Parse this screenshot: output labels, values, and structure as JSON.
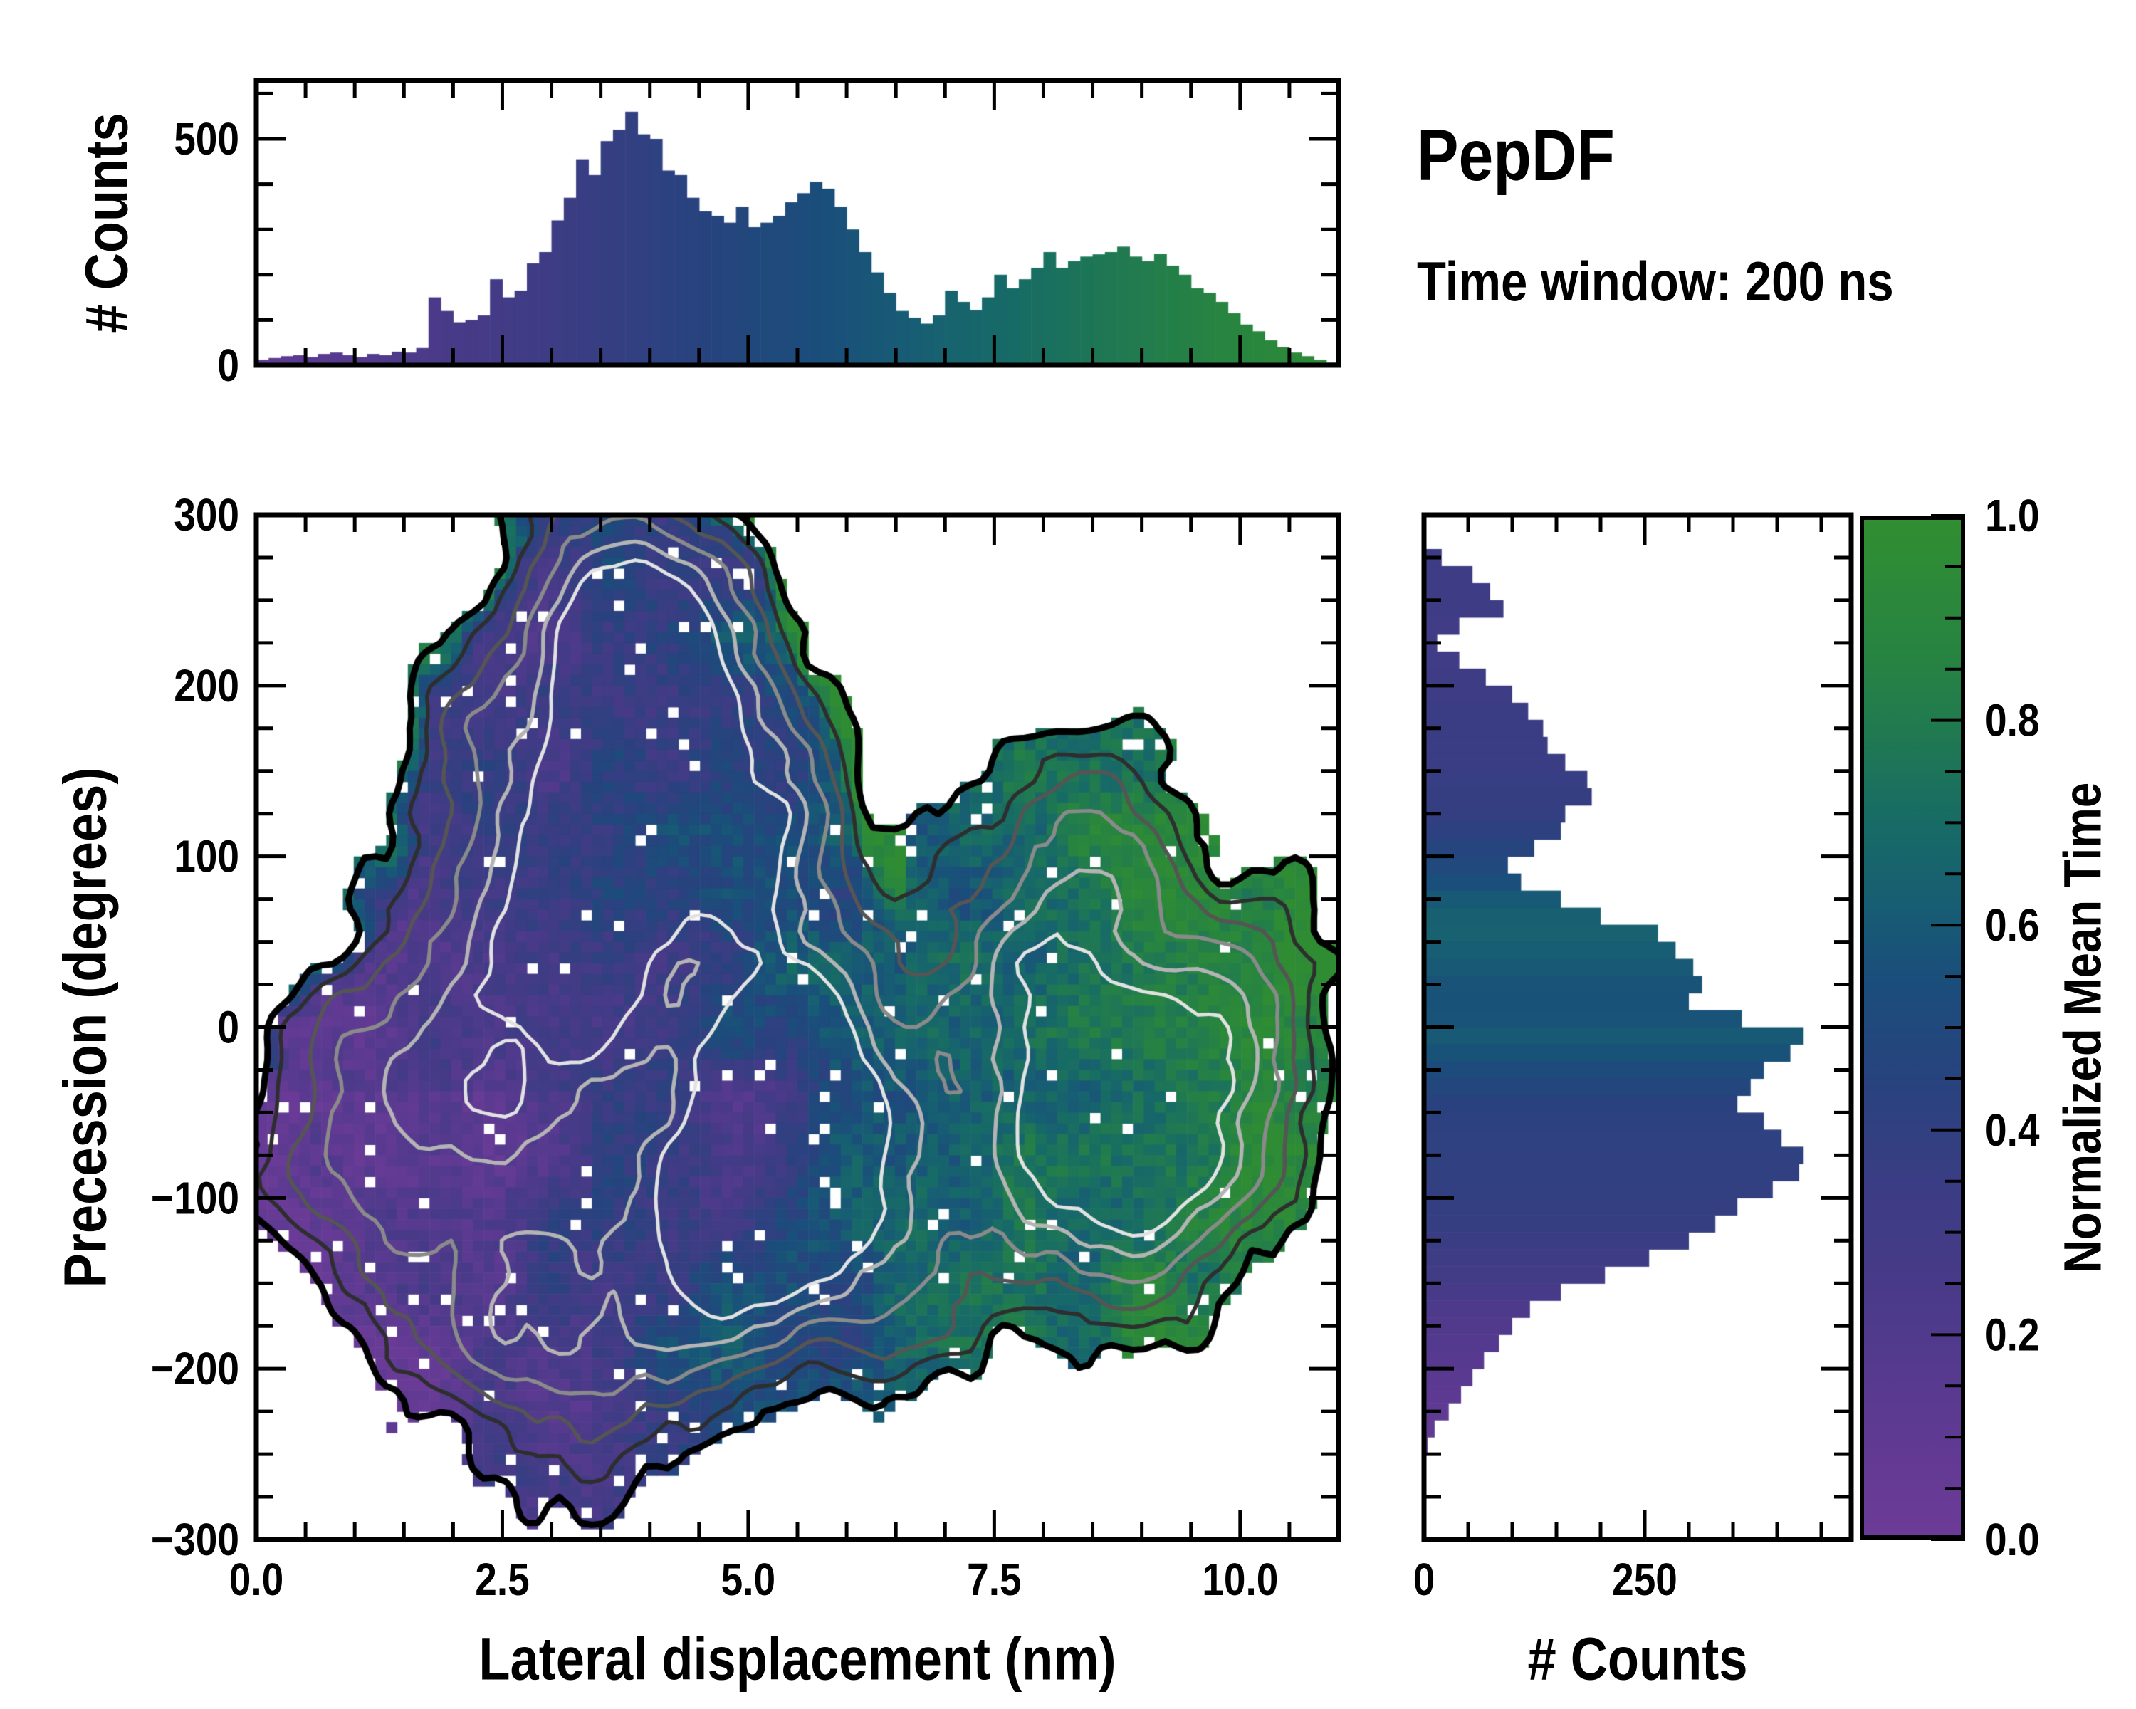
{
  "title": "PepDF",
  "subtitle": "Time window: 200 ns",
  "colors": {
    "background": "#ffffff",
    "axis": "#000000",
    "colormap": [
      [
        0.0,
        "#6c3b97"
      ],
      [
        0.12,
        "#5c3a91"
      ],
      [
        0.25,
        "#483a88"
      ],
      [
        0.35,
        "#3a3d83"
      ],
      [
        0.45,
        "#27437e"
      ],
      [
        0.55,
        "#1a4e7b"
      ],
      [
        0.62,
        "#175d73"
      ],
      [
        0.7,
        "#176b66"
      ],
      [
        0.78,
        "#1f7853"
      ],
      [
        0.86,
        "#268342"
      ],
      [
        1.0,
        "#318e31"
      ]
    ]
  },
  "colorbar": {
    "label": "Normalized Mean Time",
    "lim": [
      0,
      1
    ],
    "ticks": [
      {
        "v": 0.0,
        "label": "0.0"
      },
      {
        "v": 0.2,
        "label": "0.2"
      },
      {
        "v": 0.4,
        "label": "0.4"
      },
      {
        "v": 0.6,
        "label": "0.6"
      },
      {
        "v": 0.8,
        "label": "0.8"
      },
      {
        "v": 1.0,
        "label": "1.0"
      }
    ],
    "minor_step": 0.05
  },
  "chart_data": [
    {
      "id": "top_histogram",
      "type": "bar",
      "orientation": "vertical",
      "ylabel": "# Counts",
      "xlim": [
        0,
        11
      ],
      "ylim": [
        0,
        628
      ],
      "yticks": [
        {
          "v": 0,
          "label": "0"
        },
        {
          "v": 500,
          "label": "500"
        }
      ],
      "y_minor": 100,
      "x_major": 2.5,
      "x_minor": 0.5,
      "bar_x_start": 0.0625,
      "bar_dx": 0.125,
      "color_rule": {
        "intercept": 0.09,
        "slope": 0.0795
      },
      "values": [
        12,
        16,
        20,
        22,
        18,
        25,
        28,
        22,
        18,
        25,
        22,
        30,
        28,
        38,
        150,
        120,
        95,
        100,
        110,
        190,
        150,
        165,
        225,
        250,
        320,
        370,
        455,
        420,
        495,
        520,
        560,
        510,
        500,
        430,
        420,
        370,
        340,
        330,
        315,
        350,
        305,
        315,
        330,
        360,
        380,
        405,
        390,
        350,
        300,
        250,
        205,
        160,
        120,
        105,
        92,
        110,
        165,
        140,
        122,
        150,
        200,
        170,
        190,
        215,
        250,
        215,
        230,
        240,
        245,
        250,
        262,
        240,
        230,
        246,
        220,
        200,
        170,
        160,
        140,
        115,
        90,
        75,
        55,
        40,
        28,
        20,
        12,
        6
      ]
    },
    {
      "id": "precession_heatmap",
      "type": "heatmap",
      "xlabel": "Lateral displacement (nm)",
      "ylabel": "Precession (degrees)",
      "color_field": "Normalized Mean Time",
      "xlim": [
        0,
        11
      ],
      "ylim": [
        -300,
        300
      ],
      "xticks": [
        {
          "v": 0,
          "label": "0.0"
        },
        {
          "v": 2.5,
          "label": "2.5"
        },
        {
          "v": 5,
          "label": "5.0"
        },
        {
          "v": 7.5,
          "label": "7.5"
        },
        {
          "v": 10,
          "label": "10.0"
        }
      ],
      "yticks": [
        {
          "v": 300,
          "label": "300"
        },
        {
          "v": 200,
          "label": "200"
        },
        {
          "v": 100,
          "label": "100"
        },
        {
          "v": 0,
          "label": "0"
        },
        {
          "v": -100,
          "label": "−100"
        },
        {
          "v": -200,
          "label": "−200"
        },
        {
          "v": -300,
          "label": "−300"
        }
      ],
      "x_minor": 0.5,
      "y_minor": 25,
      "grid": {
        "nx": 100,
        "ny": 96
      },
      "density": {
        "gaussians": [
          [
            3.8,
            145,
            0.75,
            75,
            1.0
          ],
          [
            3.55,
            250,
            0.65,
            45,
            0.6
          ],
          [
            3.1,
            40,
            0.75,
            70,
            0.75
          ],
          [
            5.25,
            115,
            0.55,
            50,
            0.62
          ],
          [
            5.6,
            -25,
            0.7,
            65,
            0.9
          ],
          [
            5.05,
            -85,
            0.65,
            55,
            0.88
          ],
          [
            4.4,
            -150,
            0.9,
            65,
            0.5
          ],
          [
            2.25,
            -80,
            0.85,
            85,
            0.48
          ],
          [
            1.5,
            -25,
            0.6,
            55,
            0.34
          ],
          [
            3.0,
            -190,
            0.75,
            50,
            0.42
          ],
          [
            6.6,
            -120,
            0.75,
            60,
            0.5
          ],
          [
            7.9,
            25,
            0.75,
            70,
            0.62
          ],
          [
            8.7,
            -85,
            0.75,
            60,
            0.8
          ],
          [
            9.35,
            -30,
            0.65,
            60,
            0.55
          ],
          [
            8.55,
            105,
            0.6,
            50,
            0.38
          ],
          [
            10.15,
            -5,
            0.55,
            60,
            0.42
          ],
          [
            2.1,
            150,
            0.55,
            55,
            0.3
          ],
          [
            4.6,
            230,
            0.6,
            45,
            0.45
          ],
          [
            0.7,
            -70,
            0.6,
            70,
            0.3
          ]
        ],
        "noise": [
          {
            "amp": 0.09,
            "scale": [
              0.7,
              45
            ],
            "seed": 11
          },
          {
            "amp": 0.05,
            "scale": [
              0.28,
              18
            ],
            "seed": 23
          }
        ],
        "threshold": 0.165,
        "paint_threshold": 0.152
      },
      "time_field": {
        "base_intercept": 0.09,
        "base_slope": 0.0795,
        "noise": {
          "amp": 0.13,
          "scale": [
            0.6,
            38
          ],
          "seed": 31
        },
        "cell_jitter": 0.16,
        "rim": {
          "amp": 0.5,
          "d0": 0.3,
          "range": 0.14,
          "min_y": -25,
          "max_x": 6.6
        },
        "purple_patch": {
          "x": 5.0,
          "y": -75,
          "sx": 0.45,
          "sy": 38,
          "amp": -0.26
        },
        "lower_left": {
          "max_x": 3.4,
          "max_y": -40,
          "delta": -0.06
        }
      },
      "holes": {
        "random_p": 0.975,
        "edge_d": 0.19,
        "edge_p": 0.85
      },
      "contours": {
        "levels": [
          0.165,
          0.26,
          0.38,
          0.52,
          0.68,
          0.82
        ],
        "colors": [
          "#000000",
          "#2e2e2e",
          "#555555",
          "#8a8a8a",
          "#b4b4b4",
          "#e2e2e2"
        ],
        "widths": [
          9,
          5.5,
          5.5,
          5.5,
          5.5,
          5
        ]
      }
    },
    {
      "id": "right_histogram",
      "type": "bar",
      "orientation": "horizontal",
      "xlabel": "# Counts",
      "xlim": [
        0,
        484
      ],
      "ylim": [
        -300,
        300
      ],
      "xticks": [
        {
          "v": 0,
          "label": "0"
        },
        {
          "v": 250,
          "label": "250"
        }
      ],
      "x_minor": 50,
      "y_minor": 25,
      "y_major": 100,
      "bar_y_start": 295,
      "bar_dy": -10,
      "values": [
        0,
        0,
        20,
        55,
        75,
        90,
        40,
        15,
        40,
        70,
        100,
        118,
        135,
        140,
        160,
        185,
        190,
        160,
        155,
        125,
        95,
        110,
        155,
        200,
        265,
        285,
        305,
        315,
        300,
        360,
        430,
        415,
        385,
        370,
        355,
        385,
        405,
        430,
        425,
        395,
        355,
        330,
        300,
        255,
        205,
        155,
        120,
        100,
        85,
        68,
        55,
        42,
        28,
        12,
        4,
        0,
        0,
        0,
        0,
        0
      ],
      "t_values": [
        0.35,
        0.35,
        0.33,
        0.33,
        0.32,
        0.32,
        0.31,
        0.3,
        0.31,
        0.32,
        0.33,
        0.34,
        0.34,
        0.35,
        0.35,
        0.36,
        0.37,
        0.38,
        0.42,
        0.46,
        0.5,
        0.55,
        0.6,
        0.63,
        0.64,
        0.62,
        0.6,
        0.58,
        0.57,
        0.58,
        0.6,
        0.57,
        0.53,
        0.48,
        0.44,
        0.42,
        0.41,
        0.41,
        0.4,
        0.39,
        0.38,
        0.37,
        0.35,
        0.32,
        0.29,
        0.26,
        0.22,
        0.19,
        0.17,
        0.15,
        0.13,
        0.11,
        0.1,
        0.09,
        0.08,
        0.08,
        0.08,
        0.08,
        0.08,
        0.08
      ]
    }
  ]
}
